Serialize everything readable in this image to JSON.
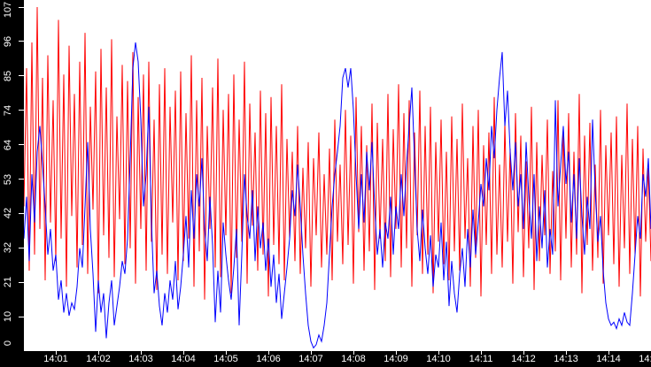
{
  "chart_data": {
    "type": "line",
    "title": "",
    "legend": "none",
    "grid": false,
    "plot_bg_color": "#ffffff",
    "axis_bg_color": "#000000",
    "axis_text_color": "#ffffff",
    "y_axis": {
      "min": 0,
      "max": 107,
      "tick_labels": [
        "0",
        "10",
        "21",
        "32",
        "42",
        "53",
        "64",
        "74",
        "85",
        "96",
        "107"
      ]
    },
    "x_axis": {
      "tick_labels": [
        "14:01",
        "14:02",
        "14:03",
        "14:04",
        "14:05",
        "14:06",
        "14:07",
        "14:08",
        "14:09",
        "14:10",
        "14:11",
        "14:12",
        "14:13",
        "14:14",
        "14:15"
      ]
    },
    "series": [
      {
        "name": "red",
        "color": "#ff0000",
        "values": [
          45,
          88,
          25,
          96,
          30,
          107,
          38,
          85,
          22,
          92,
          40,
          78,
          28,
          103,
          35,
          86,
          20,
          95,
          42,
          80,
          26,
          90,
          33,
          99,
          24,
          76,
          44,
          87,
          18,
          94,
          36,
          82,
          29,
          97,
          23,
          73,
          41,
          89,
          27,
          84,
          32,
          93,
          21,
          79,
          38,
          86,
          25,
          90,
          34,
          72,
          19,
          83,
          30,
          88,
          24,
          76,
          40,
          81,
          22,
          87,
          28,
          74,
          35,
          92,
          20,
          78,
          31,
          85,
          16,
          70,
          38,
          82,
          26,
          91,
          23,
          75,
          36,
          80,
          18,
          86,
          29,
          72,
          34,
          90,
          21,
          77,
          39,
          68,
          25,
          81,
          30,
          74,
          17,
          79,
          33,
          70,
          27,
          83,
          22,
          66,
          35,
          62,
          28,
          70,
          24,
          57,
          32,
          65,
          20,
          60,
          36,
          68,
          26,
          55,
          30,
          63,
          22,
          72,
          34,
          58,
          27,
          75,
          33,
          67,
          21,
          79,
          37,
          70,
          25,
          64,
          31,
          77,
          19,
          71,
          35,
          66,
          28,
          80,
          23,
          69,
          38,
          83,
          26,
          74,
          32,
          78,
          20,
          68,
          36,
          81,
          24,
          70,
          30,
          76,
          18,
          65,
          34,
          72,
          27,
          62,
          22,
          73,
          31,
          66,
          25,
          77,
          35,
          60,
          20,
          70,
          29,
          75,
          17,
          64,
          33,
          68,
          24,
          79,
          30,
          58,
          26,
          71,
          34,
          63,
          21,
          74,
          37,
          67,
          23,
          59,
          32,
          76,
          19,
          65,
          28,
          61,
          36,
          72,
          24,
          56,
          31,
          78,
          22,
          69,
          35,
          74,
          26,
          62,
          30,
          80,
          18,
          67,
          33,
          71,
          25,
          58,
          29,
          75,
          21,
          64,
          36,
          68,
          27,
          73,
          20,
          61,
          32,
          77,
          24,
          66,
          30,
          70,
          17,
          63,
          34,
          57,
          28
        ]
      },
      {
        "name": "blue",
        "color": "#0000ff",
        "values": [
          35,
          48,
          28,
          55,
          40,
          62,
          70,
          58,
          45,
          30,
          38,
          25,
          30,
          16,
          22,
          12,
          18,
          11,
          15,
          13,
          20,
          32,
          26,
          45,
          65,
          38,
          24,
          6,
          22,
          12,
          18,
          4,
          15,
          22,
          8,
          14,
          20,
          28,
          24,
          35,
          60,
          88,
          96,
          90,
          72,
          45,
          55,
          76,
          40,
          18,
          25,
          14,
          8,
          18,
          12,
          22,
          16,
          28,
          13,
          20,
          30,
          42,
          26,
          50,
          35,
          55,
          45,
          60,
          38,
          28,
          48,
          33,
          9,
          25,
          12,
          40,
          30,
          22,
          16,
          26,
          38,
          8,
          30,
          55,
          42,
          35,
          50,
          28,
          45,
          32,
          40,
          25,
          35,
          20,
          30,
          15,
          24,
          10,
          18,
          26,
          35,
          50,
          42,
          58,
          45,
          30,
          18,
          8,
          3,
          1,
          2,
          5,
          3,
          8,
          15,
          30,
          45,
          55,
          62,
          70,
          85,
          88,
          82,
          88,
          75,
          55,
          38,
          55,
          40,
          62,
          50,
          65,
          45,
          30,
          38,
          26,
          40,
          35,
          48,
          30,
          45,
          38,
          55,
          42,
          58,
          70,
          82,
          60,
          38,
          28,
          44,
          32,
          24,
          36,
          20,
          30,
          26,
          40,
          22,
          34,
          14,
          28,
          18,
          12,
          24,
          32,
          20,
          38,
          26,
          44,
          30,
          40,
          52,
          45,
          60,
          50,
          70,
          60,
          75,
          85,
          93,
          70,
          81,
          62,
          50,
          65,
          45,
          55,
          38,
          65,
          48,
          35,
          55,
          28,
          45,
          32,
          50,
          26,
          38,
          30,
          78,
          45,
          58,
          70,
          52,
          62,
          40,
          55,
          35,
          60,
          42,
          30,
          48,
          38,
          72,
          50,
          34,
          42,
          25,
          15,
          10,
          8,
          9,
          7,
          10,
          8,
          12,
          9,
          8,
          18,
          30,
          42,
          35,
          55,
          48,
          60,
          38
        ]
      }
    ]
  }
}
